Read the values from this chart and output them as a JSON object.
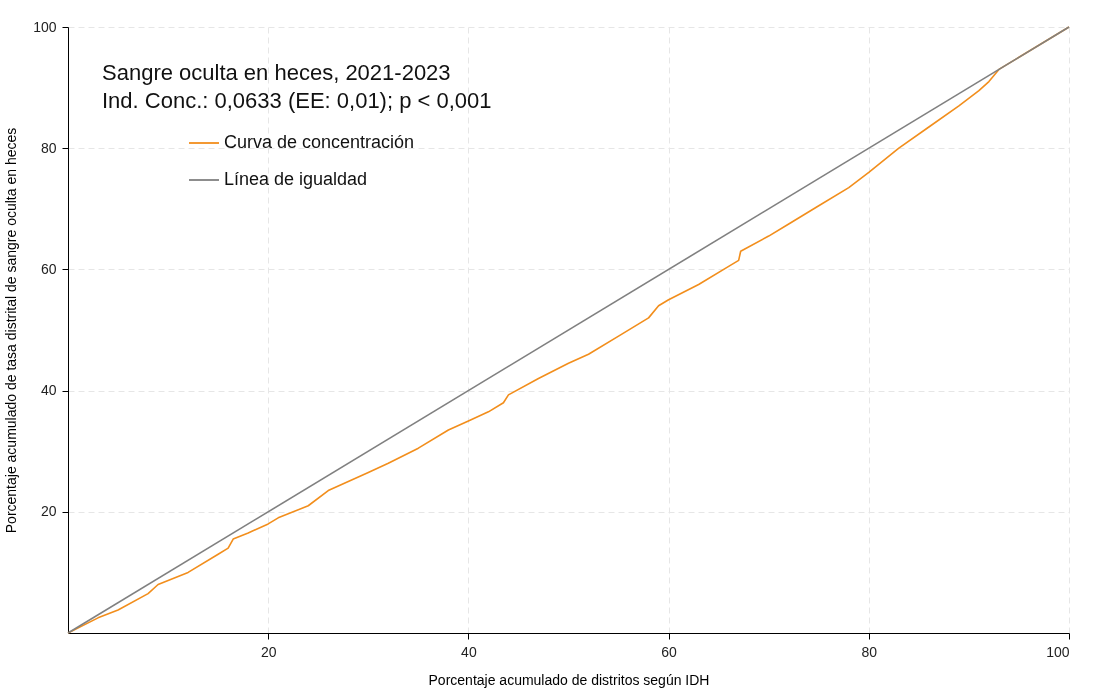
{
  "chart_data": {
    "type": "line",
    "title": "Sangre oculta en heces, 2021-2023",
    "subtitle": "Ind. Conc.: 0,0633 (EE: 0,01); p < 0,001",
    "xlabel": "Porcentaje acumulado de distritos según IDH",
    "ylabel": "Porcentaje acumulado de tasa distrital de sangre oculta en heces",
    "series": [
      {
        "name": "Curva de concentración",
        "color": "#f28e1c",
        "x": [
          0,
          3,
          5,
          8,
          9,
          12,
          15,
          16,
          16.5,
          18,
          20,
          21,
          24,
          26,
          30,
          32,
          35,
          38,
          40,
          42,
          43.5,
          44,
          47,
          50,
          52,
          55,
          58,
          59,
          60,
          63,
          66,
          67,
          67.2,
          70,
          72,
          75,
          78,
          80,
          83,
          86,
          89,
          91,
          92,
          93,
          95,
          100
        ],
        "values": [
          0,
          2.5,
          3.8,
          6.5,
          8,
          10,
          13,
          14,
          15.5,
          16.5,
          18,
          19,
          21,
          23.5,
          26.5,
          28,
          30.5,
          33.5,
          35,
          36.5,
          38,
          39.3,
          42,
          44.5,
          46,
          49,
          52,
          54,
          55,
          57.5,
          60.5,
          61.5,
          63,
          65.5,
          67.5,
          70.5,
          73.5,
          76,
          80,
          83.5,
          87,
          89.5,
          91,
          93,
          95,
          100
        ]
      },
      {
        "name": "Línea de igualdad",
        "color": "#808080",
        "x": [
          0,
          100
        ],
        "values": [
          0,
          100
        ]
      }
    ],
    "xlim": [
      0,
      100
    ],
    "ylim": [
      0,
      100
    ],
    "xticks": [
      20,
      40,
      60,
      80,
      100
    ],
    "yticks": [
      20,
      40,
      60,
      80,
      100
    ],
    "grid": true,
    "legend": "top left",
    "line_style": "solid",
    "marker": "none"
  }
}
